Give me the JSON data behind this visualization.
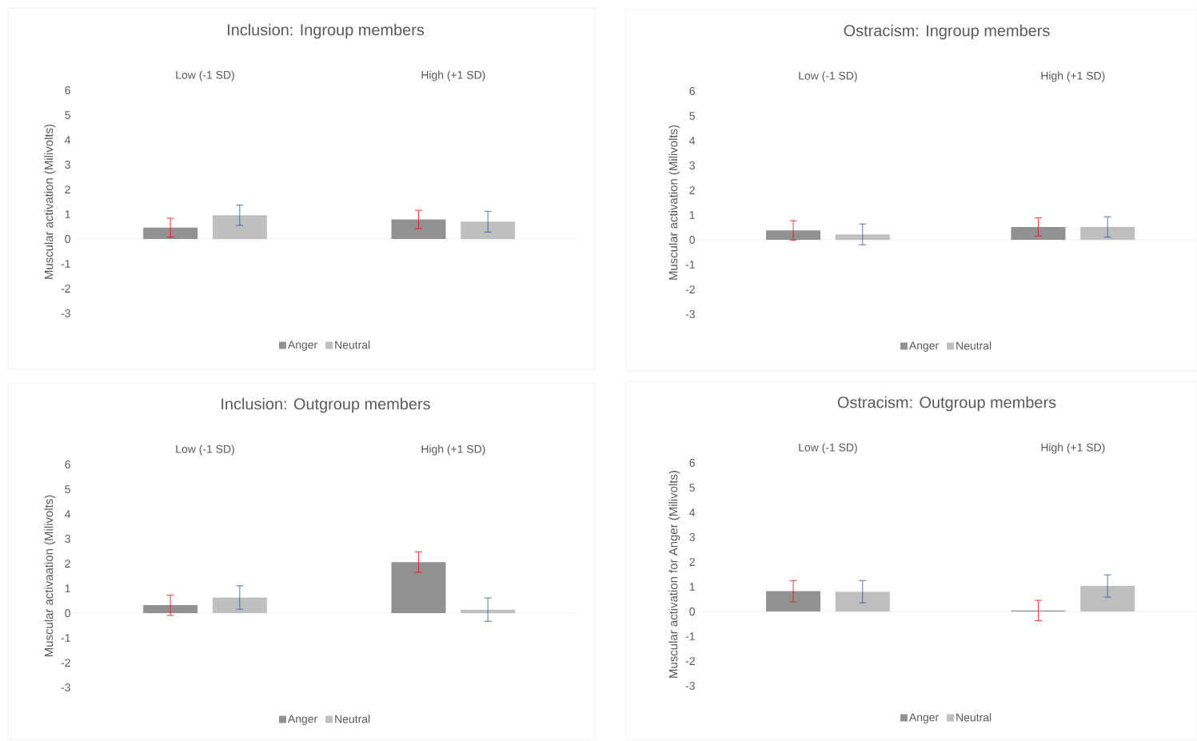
{
  "chart_data": [
    {
      "type": "bar",
      "title": "Inclusion: Ingroup members",
      "ylabel": "Muscular activation (Milivolts)",
      "categories": [
        "Low (-1 SD)",
        "High (+1 SD)"
      ],
      "ylim": [
        -3,
        6
      ],
      "yticks": [
        -3,
        -2,
        -1,
        0,
        1,
        2,
        3,
        4,
        5,
        6
      ],
      "legend": "bottom",
      "series": [
        {
          "name": "Anger",
          "color": "#919191",
          "values": [
            0.46,
            0.79
          ],
          "errors": [
            0.38,
            0.37
          ]
        },
        {
          "name": "Neutral",
          "color": "#bfbfbf",
          "values": [
            0.96,
            0.7
          ],
          "errors": [
            0.41,
            0.42
          ]
        }
      ]
    },
    {
      "type": "bar",
      "title": "Ostracism: Ingroup members",
      "ylabel": "Muscular activation (Milivolts)",
      "categories": [
        "Low (-1 SD)",
        "High (+1 SD)"
      ],
      "ylim": [
        -3,
        6
      ],
      "yticks": [
        -3,
        -2,
        -1,
        0,
        1,
        2,
        3,
        4,
        5,
        6
      ],
      "legend": "bottom",
      "series": [
        {
          "name": "Anger",
          "color": "#919191",
          "values": [
            0.38,
            0.52
          ],
          "errors": [
            0.39,
            0.37
          ]
        },
        {
          "name": "Neutral",
          "color": "#bfbfbf",
          "values": [
            0.22,
            0.52
          ],
          "errors": [
            0.42,
            0.41
          ]
        }
      ]
    },
    {
      "type": "bar",
      "title": "Inclusion: Outgroup members",
      "ylabel": "Muscular activaation (Milivolts)",
      "categories": [
        "Low (-1 SD)",
        "High (+1 SD)"
      ],
      "ylim": [
        -3,
        6
      ],
      "yticks": [
        -3,
        -2,
        -1,
        0,
        1,
        2,
        3,
        4,
        5,
        6
      ],
      "legend": "bottom",
      "series": [
        {
          "name": "Anger",
          "color": "#919191",
          "values": [
            0.32,
            2.06
          ],
          "errors": [
            0.41,
            0.41
          ]
        },
        {
          "name": "Neutral",
          "color": "#bfbfbf",
          "values": [
            0.63,
            0.14
          ],
          "errors": [
            0.47,
            0.47
          ]
        }
      ]
    },
    {
      "type": "bar",
      "title": "Ostracism: Outgroup members",
      "ylabel": "Muscular activation for Anger (Milivolts)",
      "categories": [
        "Low (-1 SD)",
        "High (+1 SD)"
      ],
      "ylim": [
        -3,
        6
      ],
      "yticks": [
        -3,
        -2,
        -1,
        0,
        1,
        2,
        3,
        4,
        5,
        6
      ],
      "legend": "bottom",
      "series": [
        {
          "name": "Anger",
          "color": "#919191",
          "values": [
            0.82,
            0.04
          ],
          "errors": [
            0.43,
            0.41
          ]
        },
        {
          "name": "Neutral",
          "color": "#bfbfbf",
          "values": [
            0.8,
            1.03
          ],
          "errors": [
            0.45,
            0.45
          ]
        }
      ]
    }
  ]
}
